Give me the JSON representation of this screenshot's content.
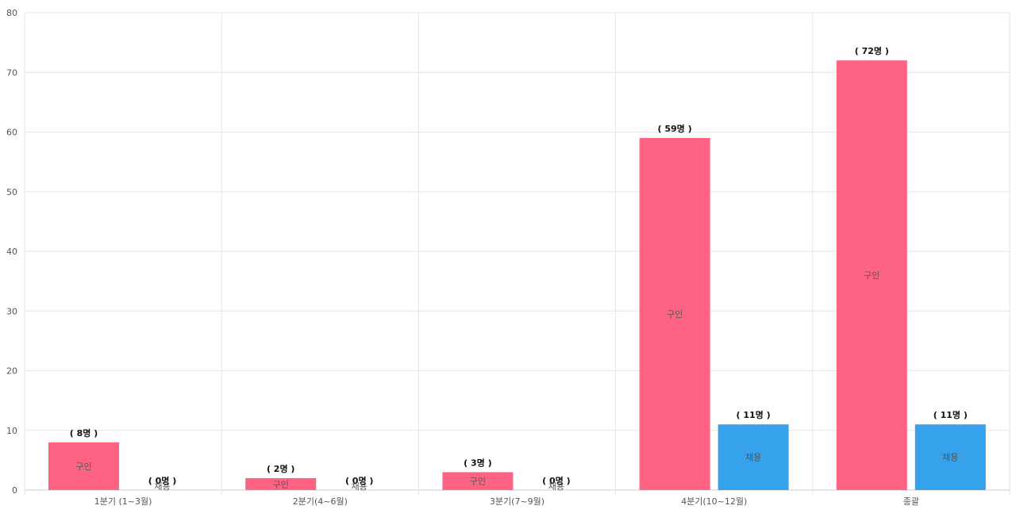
{
  "chart_data": {
    "type": "bar",
    "categories": [
      "1분기 (1~3월)",
      "2분기(4~6월)",
      "3분기(7~9월)",
      "4분기(10~12월)",
      "종괄"
    ],
    "series": [
      {
        "name": "구인",
        "color": "#ff6384",
        "values": [
          8,
          2,
          3,
          59,
          72
        ],
        "labels": [
          "( 8명 )",
          "( 2명 )",
          "( 3명 )",
          "( 59명 )",
          "( 72명 )"
        ]
      },
      {
        "name": "채용",
        "color": "#36a2eb",
        "values": [
          0,
          0,
          0,
          11,
          11
        ],
        "labels": [
          "( 0명 )",
          "( 0명 )",
          "( 0명 )",
          "( 11명 )",
          "( 11명 )"
        ]
      }
    ],
    "ylim": [
      0,
      80
    ],
    "yticks": [
      0,
      10,
      20,
      30,
      40,
      50,
      60,
      70,
      80
    ],
    "grid": true,
    "title": "",
    "xlabel": "",
    "ylabel": ""
  }
}
